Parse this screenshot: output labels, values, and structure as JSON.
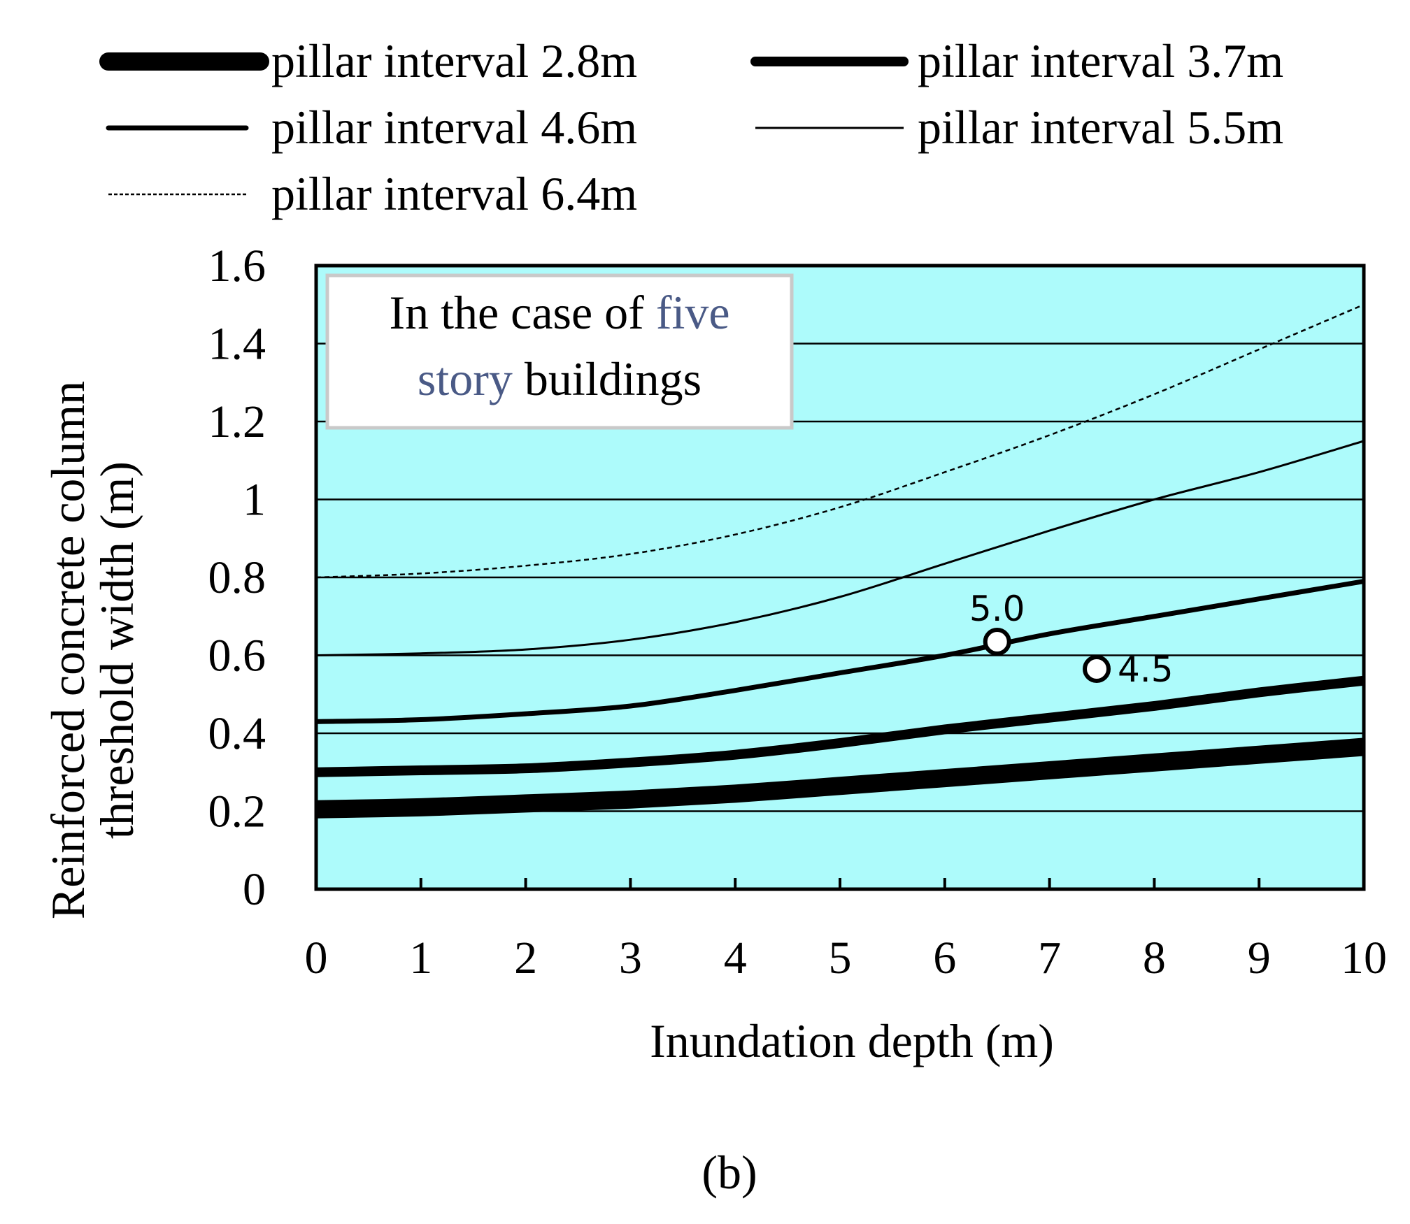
{
  "chart_data": {
    "type": "line",
    "xlabel": "Inundation depth (m)",
    "ylabel_lines": [
      "Reinforced concrete column",
      "threshold width (m)"
    ],
    "xlim": [
      0,
      10
    ],
    "ylim": [
      0,
      1.6
    ],
    "x_ticks": [
      "0",
      "1",
      "2",
      "3",
      "4",
      "5",
      "6",
      "7",
      "8",
      "9",
      "10"
    ],
    "y_ticks": [
      "0",
      "0.2",
      "0.4",
      "0.6",
      "0.8",
      "1",
      "1.2",
      "1.4",
      "1.6"
    ],
    "y_tick_values": [
      0,
      0.2,
      0.4,
      0.6,
      0.8,
      1.0,
      1.2,
      1.4,
      1.6
    ],
    "grid": "horizontal",
    "background_color": "#adfbfb",
    "annotation_box": {
      "line1_plain": "In the case of ",
      "line1_link": "five",
      "line2_link": "story",
      "line2_plain": " buildings"
    },
    "series": [
      {
        "name": "pillar interval 2.8m",
        "style": "very-thick",
        "x": [
          0,
          1,
          2,
          3,
          4,
          5,
          6,
          7,
          8,
          9,
          10
        ],
        "y": [
          0.205,
          0.21,
          0.22,
          0.23,
          0.245,
          0.265,
          0.285,
          0.305,
          0.325,
          0.345,
          0.365
        ]
      },
      {
        "name": "pillar interval 3.7m",
        "style": "thick",
        "x": [
          0,
          1,
          2,
          3,
          4,
          5,
          6,
          7,
          8,
          9,
          10
        ],
        "y": [
          0.3,
          0.305,
          0.31,
          0.325,
          0.345,
          0.375,
          0.41,
          0.44,
          0.47,
          0.505,
          0.535
        ]
      },
      {
        "name": "pillar interval 4.6m",
        "style": "medium",
        "x": [
          0,
          1,
          2,
          3,
          4,
          5,
          6,
          7,
          8,
          9,
          10
        ],
        "y": [
          0.43,
          0.435,
          0.45,
          0.47,
          0.51,
          0.555,
          0.6,
          0.655,
          0.7,
          0.745,
          0.79
        ]
      },
      {
        "name": "pillar interval 5.5m",
        "style": "thin",
        "x": [
          0,
          1,
          2,
          3,
          4,
          5,
          6,
          7,
          8,
          9,
          10
        ],
        "y": [
          0.6,
          0.605,
          0.615,
          0.64,
          0.685,
          0.75,
          0.835,
          0.92,
          1.0,
          1.07,
          1.15
        ]
      },
      {
        "name": "pillar interval 6.4m",
        "style": "dotted",
        "x": [
          0,
          1,
          2,
          3,
          4,
          5,
          6,
          7,
          8,
          9,
          10
        ],
        "y": [
          0.8,
          0.81,
          0.83,
          0.86,
          0.91,
          0.98,
          1.07,
          1.165,
          1.27,
          1.385,
          1.5
        ]
      }
    ],
    "points": [
      {
        "x": 6.5,
        "y": 0.635,
        "label": "5.0"
      },
      {
        "x": 7.45,
        "y": 0.565,
        "label": "4.5"
      }
    ]
  },
  "caption": "(b)"
}
